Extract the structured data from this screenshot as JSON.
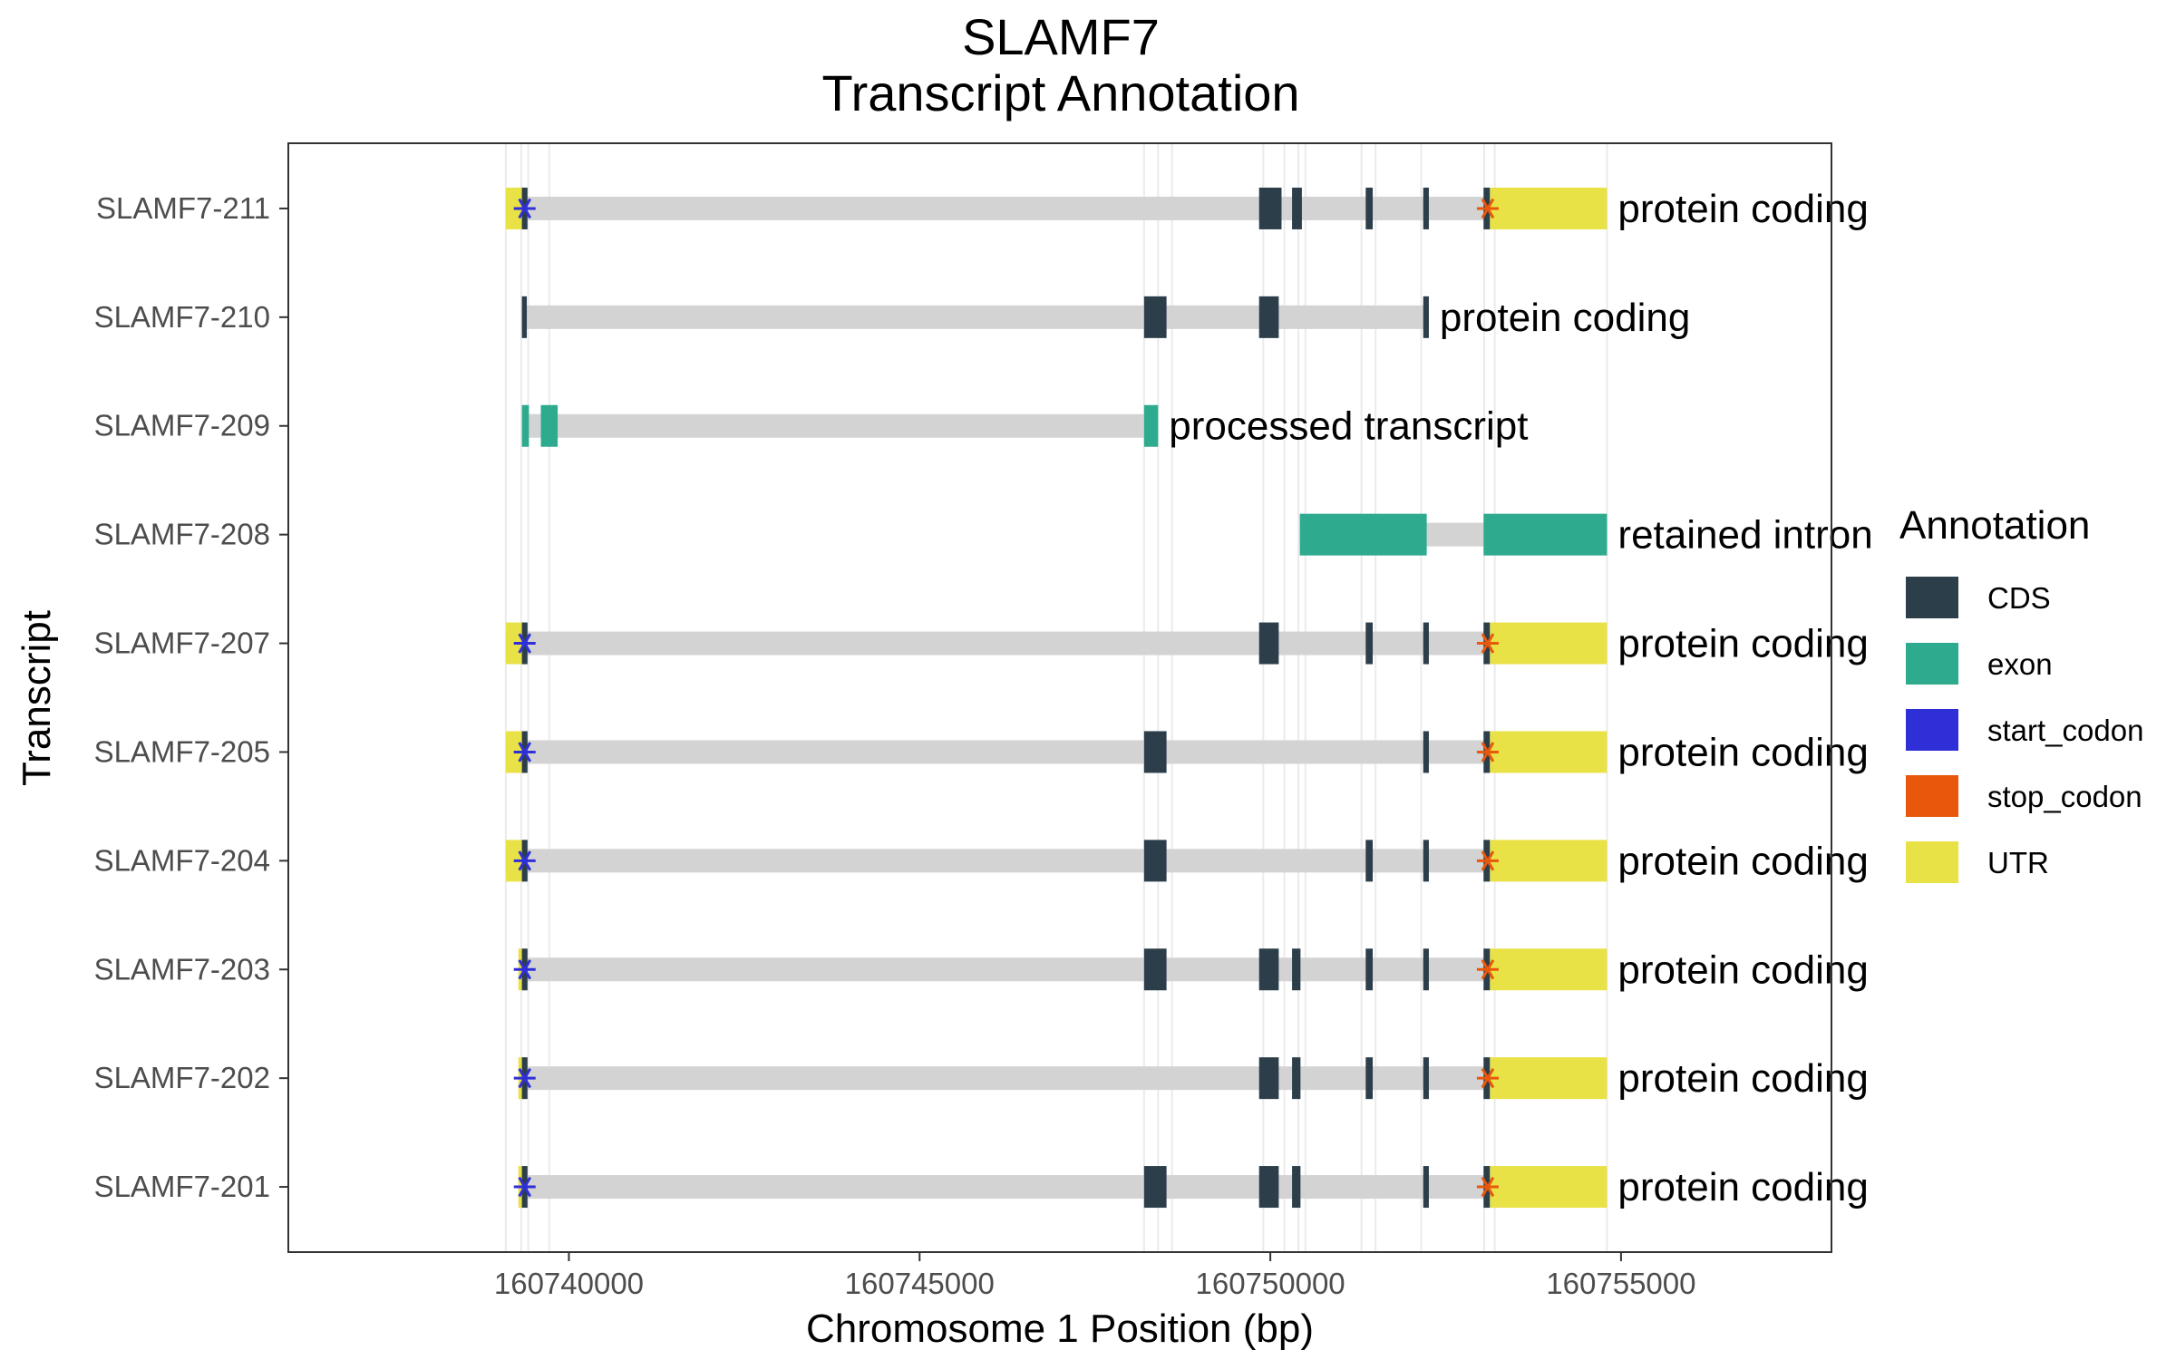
{
  "chart_data": {
    "type": "gene-track",
    "title": [
      "SLAMF7",
      "Transcript Annotation"
    ],
    "xlabel": "Chromosome 1 Position (bp)",
    "ylabel": "Transcript",
    "xlim": [
      160736000,
      160758000
    ],
    "xticks": [
      160740000,
      160745000,
      160750000,
      160755000
    ],
    "xtick_labels": [
      "160740000",
      "160745000",
      "160750000",
      "160755000"
    ],
    "grid": false,
    "legend": {
      "title": "Annotation",
      "placement": "right",
      "entries": [
        {
          "label": "CDS",
          "color": "#2c3e4a"
        },
        {
          "label": "exon",
          "color": "#2eab8e"
        },
        {
          "label": "start_codon",
          "color": "#2f2fd8"
        },
        {
          "label": "stop_codon",
          "color": "#e8570c"
        },
        {
          "label": "UTR",
          "color": "#e8e246"
        }
      ]
    },
    "colors": {
      "intron": "#d3d3d3",
      "guide": "#ebebeb"
    },
    "guides": [
      160739100,
      160739320,
      160739420,
      160739720,
      160748200,
      160748400,
      160748600,
      160749900,
      160750200,
      160750400,
      160750500,
      160751300,
      160751500,
      160752150,
      160753050,
      160753200,
      160754800
    ],
    "transcripts": [
      {
        "name": "SLAMF7-211",
        "biotype": "protein coding",
        "span": [
          160739100,
          160754800
        ],
        "features": [
          {
            "type": "UTR",
            "start": 160739100,
            "end": 160739360
          },
          {
            "type": "CDS",
            "start": 160739330,
            "end": 160739410
          },
          {
            "type": "CDS",
            "start": 160749840,
            "end": 160750160
          },
          {
            "type": "CDS",
            "start": 160750310,
            "end": 160750450
          },
          {
            "type": "CDS",
            "start": 160751360,
            "end": 160751460
          },
          {
            "type": "CDS",
            "start": 160752180,
            "end": 160752260
          },
          {
            "type": "CDS",
            "start": 160753040,
            "end": 160753130
          },
          {
            "type": "UTR",
            "start": 160753130,
            "end": 160754800
          }
        ],
        "start_codon": 160739370,
        "stop_codon": 160753100
      },
      {
        "name": "SLAMF7-210",
        "biotype": "protein coding",
        "span": [
          160739330,
          160752260
        ],
        "features": [
          {
            "type": "CDS",
            "start": 160739330,
            "end": 160739400
          },
          {
            "type": "CDS",
            "start": 160748200,
            "end": 160748520
          },
          {
            "type": "CDS",
            "start": 160749840,
            "end": 160750120
          },
          {
            "type": "CDS",
            "start": 160752180,
            "end": 160752260
          }
        ]
      },
      {
        "name": "SLAMF7-209",
        "biotype": "processed transcript",
        "span": [
          160739330,
          160748400
        ],
        "features": [
          {
            "type": "exon",
            "start": 160739330,
            "end": 160739430
          },
          {
            "type": "exon",
            "start": 160739600,
            "end": 160739840
          },
          {
            "type": "exon",
            "start": 160748200,
            "end": 160748400
          }
        ]
      },
      {
        "name": "SLAMF7-208",
        "biotype": "retained intron",
        "span": [
          160750420,
          160754800
        ],
        "features": [
          {
            "type": "exon",
            "start": 160750420,
            "end": 160752230
          },
          {
            "type": "exon",
            "start": 160753040,
            "end": 160754800
          }
        ]
      },
      {
        "name": "SLAMF7-207",
        "biotype": "protein coding",
        "span": [
          160739100,
          160754800
        ],
        "features": [
          {
            "type": "UTR",
            "start": 160739100,
            "end": 160739360
          },
          {
            "type": "CDS",
            "start": 160739330,
            "end": 160739410
          },
          {
            "type": "CDS",
            "start": 160749840,
            "end": 160750120
          },
          {
            "type": "CDS",
            "start": 160751360,
            "end": 160751460
          },
          {
            "type": "CDS",
            "start": 160752180,
            "end": 160752260
          },
          {
            "type": "CDS",
            "start": 160753040,
            "end": 160753130
          },
          {
            "type": "UTR",
            "start": 160753130,
            "end": 160754800
          }
        ],
        "start_codon": 160739370,
        "stop_codon": 160753100
      },
      {
        "name": "SLAMF7-205",
        "biotype": "protein coding",
        "span": [
          160739100,
          160754800
        ],
        "features": [
          {
            "type": "UTR",
            "start": 160739100,
            "end": 160739360
          },
          {
            "type": "CDS",
            "start": 160739330,
            "end": 160739410
          },
          {
            "type": "CDS",
            "start": 160748200,
            "end": 160748520
          },
          {
            "type": "CDS",
            "start": 160752180,
            "end": 160752260
          },
          {
            "type": "CDS",
            "start": 160753040,
            "end": 160753130
          },
          {
            "type": "UTR",
            "start": 160753130,
            "end": 160754800
          }
        ],
        "start_codon": 160739370,
        "stop_codon": 160753100
      },
      {
        "name": "SLAMF7-204",
        "biotype": "protein coding",
        "span": [
          160739100,
          160754800
        ],
        "features": [
          {
            "type": "UTR",
            "start": 160739100,
            "end": 160739360
          },
          {
            "type": "CDS",
            "start": 160739330,
            "end": 160739410
          },
          {
            "type": "CDS",
            "start": 160748200,
            "end": 160748520
          },
          {
            "type": "CDS",
            "start": 160751360,
            "end": 160751460
          },
          {
            "type": "CDS",
            "start": 160752180,
            "end": 160752260
          },
          {
            "type": "CDS",
            "start": 160753040,
            "end": 160753130
          },
          {
            "type": "UTR",
            "start": 160753130,
            "end": 160754800
          }
        ],
        "start_codon": 160739370,
        "stop_codon": 160753100
      },
      {
        "name": "SLAMF7-203",
        "biotype": "protein coding",
        "span": [
          160739280,
          160754800
        ],
        "features": [
          {
            "type": "UTR",
            "start": 160739280,
            "end": 160739360
          },
          {
            "type": "CDS",
            "start": 160739330,
            "end": 160739410
          },
          {
            "type": "CDS",
            "start": 160748200,
            "end": 160748520
          },
          {
            "type": "CDS",
            "start": 160749840,
            "end": 160750120
          },
          {
            "type": "CDS",
            "start": 160750310,
            "end": 160750430
          },
          {
            "type": "CDS",
            "start": 160751360,
            "end": 160751460
          },
          {
            "type": "CDS",
            "start": 160752180,
            "end": 160752260
          },
          {
            "type": "CDS",
            "start": 160753040,
            "end": 160753130
          },
          {
            "type": "UTR",
            "start": 160753130,
            "end": 160754800
          }
        ],
        "start_codon": 160739370,
        "stop_codon": 160753100
      },
      {
        "name": "SLAMF7-202",
        "biotype": "protein coding",
        "span": [
          160739280,
          160754800
        ],
        "features": [
          {
            "type": "UTR",
            "start": 160739280,
            "end": 160739360
          },
          {
            "type": "CDS",
            "start": 160739330,
            "end": 160739410
          },
          {
            "type": "CDS",
            "start": 160749840,
            "end": 160750120
          },
          {
            "type": "CDS",
            "start": 160750310,
            "end": 160750430
          },
          {
            "type": "CDS",
            "start": 160751360,
            "end": 160751460
          },
          {
            "type": "CDS",
            "start": 160752180,
            "end": 160752260
          },
          {
            "type": "CDS",
            "start": 160753040,
            "end": 160753130
          },
          {
            "type": "UTR",
            "start": 160753130,
            "end": 160754800
          }
        ],
        "start_codon": 160739370,
        "stop_codon": 160753100
      },
      {
        "name": "SLAMF7-201",
        "biotype": "protein coding",
        "span": [
          160739280,
          160754800
        ],
        "features": [
          {
            "type": "UTR",
            "start": 160739280,
            "end": 160739360
          },
          {
            "type": "CDS",
            "start": 160739330,
            "end": 160739410
          },
          {
            "type": "CDS",
            "start": 160748200,
            "end": 160748520
          },
          {
            "type": "CDS",
            "start": 160749840,
            "end": 160750120
          },
          {
            "type": "CDS",
            "start": 160750310,
            "end": 160750430
          },
          {
            "type": "CDS",
            "start": 160752180,
            "end": 160752260
          },
          {
            "type": "CDS",
            "start": 160753040,
            "end": 160753130
          },
          {
            "type": "UTR",
            "start": 160753130,
            "end": 160754800
          }
        ],
        "start_codon": 160739370,
        "stop_codon": 160753100
      }
    ]
  }
}
